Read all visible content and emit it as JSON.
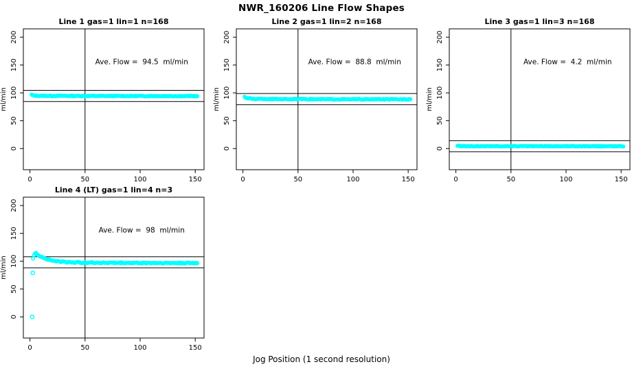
{
  "figure": {
    "title": "NWR_160206  Line Flow Shapes",
    "xlabel": "Jog Position (1 second resolution)",
    "background": "#ffffff",
    "frame_color": "#000000",
    "point_color": "#00ffff"
  },
  "chart_data": [
    {
      "type": "scatter",
      "title": "Line 1 gas=1 lin=1 n=168",
      "annotation": "Ave. Flow =  94.5  ml/min",
      "ave_flow": 94.5,
      "n_points": 168,
      "ylabel": "ml/min",
      "xticks": [
        0,
        50,
        100,
        150
      ],
      "yticks": [
        0,
        50,
        100,
        150,
        200
      ],
      "xlim": [
        0,
        150
      ],
      "ylim": [
        0,
        200
      ],
      "vline_x": 50,
      "ref_lines": [
        104.5,
        84.5
      ],
      "series_profile": [
        [
          1.5,
          96.5
        ],
        [
          3,
          95.2
        ],
        [
          8,
          94.7
        ],
        [
          60,
          94.4
        ],
        [
          152,
          94.2
        ]
      ],
      "noise": 0.7,
      "row": 0,
      "col": 0
    },
    {
      "type": "scatter",
      "title": "Line 2 gas=1 lin=2 n=168",
      "annotation": "Ave. Flow =  88.8  ml/min",
      "ave_flow": 88.8,
      "n_points": 168,
      "ylabel": "ml/min",
      "xticks": [
        0,
        50,
        100,
        150
      ],
      "yticks": [
        0,
        50,
        100,
        150,
        200
      ],
      "xlim": [
        0,
        150
      ],
      "ylim": [
        0,
        200
      ],
      "vline_x": 50,
      "ref_lines": [
        98.8,
        78.8
      ],
      "series_profile": [
        [
          1.5,
          93
        ],
        [
          3.5,
          90.3
        ],
        [
          10,
          89.2
        ],
        [
          60,
          88.6
        ],
        [
          152,
          88.4
        ]
      ],
      "noise": 0.7,
      "row": 0,
      "col": 1
    },
    {
      "type": "scatter",
      "title": "Line 3 gas=1 lin=3 n=168",
      "annotation": "Ave. Flow =  4.2  ml/min",
      "ave_flow": 4.2,
      "n_points": 168,
      "ylabel": "ml/min",
      "xticks": [
        0,
        50,
        100,
        150
      ],
      "yticks": [
        0,
        50,
        100,
        150,
        200
      ],
      "xlim": [
        0,
        150
      ],
      "ylim": [
        0,
        200
      ],
      "vline_x": 50,
      "ref_lines": [
        14.2,
        -5.8
      ],
      "series_profile": [
        [
          1.5,
          5.3
        ],
        [
          4,
          4.5
        ],
        [
          15,
          4.2
        ],
        [
          152,
          4.2
        ]
      ],
      "noise": 0.6,
      "row": 0,
      "col": 2
    },
    {
      "type": "scatter",
      "title": "Line 4 (LT) gas=1 lin=4 n=3",
      "annotation": "Ave. Flow =  98  ml/min",
      "ave_flow": 98,
      "n_points": 165,
      "ylabel": "ml/min",
      "xticks": [
        0,
        50,
        100,
        150
      ],
      "yticks": [
        0,
        50,
        100,
        150,
        200
      ],
      "xlim": [
        0,
        150
      ],
      "ylim": [
        0,
        200
      ],
      "vline_x": 50,
      "ref_lines": [
        108,
        88
      ],
      "extra_points": [
        [
          2,
          0
        ],
        [
          2.5,
          79
        ]
      ],
      "series_profile": [
        [
          2.8,
          104
        ],
        [
          3.6,
          111
        ],
        [
          4.8,
          115
        ],
        [
          6.5,
          113
        ],
        [
          9,
          109.5
        ],
        [
          13,
          105.5
        ],
        [
          18,
          102
        ],
        [
          24,
          100
        ],
        [
          32,
          98.5
        ],
        [
          48,
          97.5
        ],
        [
          80,
          97
        ],
        [
          152,
          96.5
        ]
      ],
      "noise": 1.1,
      "row": 1,
      "col": 0
    }
  ]
}
